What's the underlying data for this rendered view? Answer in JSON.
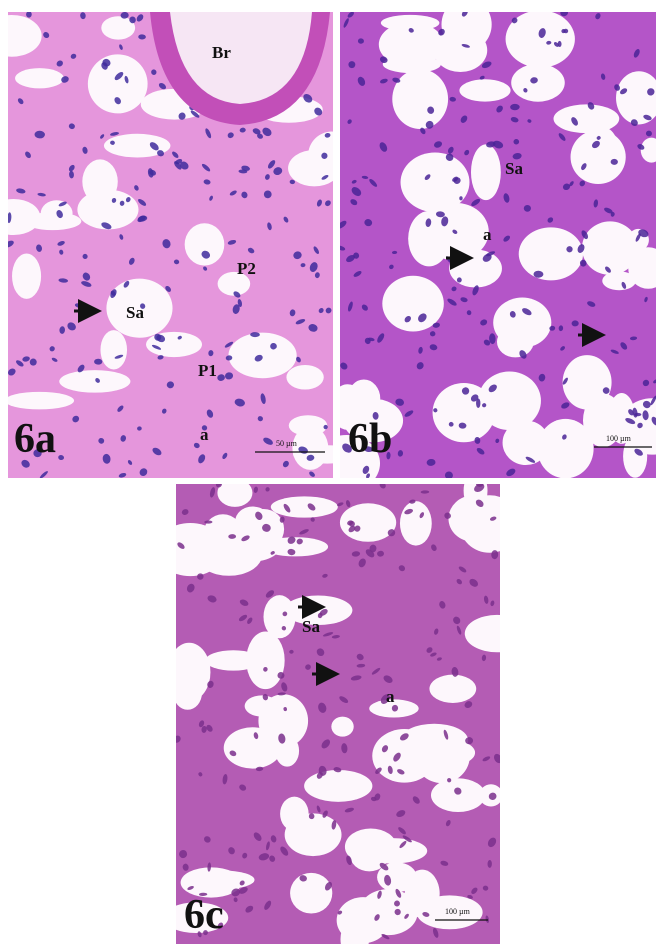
{
  "panels": [
    {
      "label": "6a",
      "annotations": [
        "Br",
        "Sa",
        "P2",
        "P1",
        "a"
      ],
      "scale_bar": "50 µm"
    },
    {
      "label": "6b",
      "annotations": [
        "Sa",
        "a"
      ],
      "scale_bar": "100 µm"
    },
    {
      "label": "6c",
      "annotations": [
        "Sa",
        "a"
      ],
      "scale_bar": "100 µm"
    }
  ]
}
